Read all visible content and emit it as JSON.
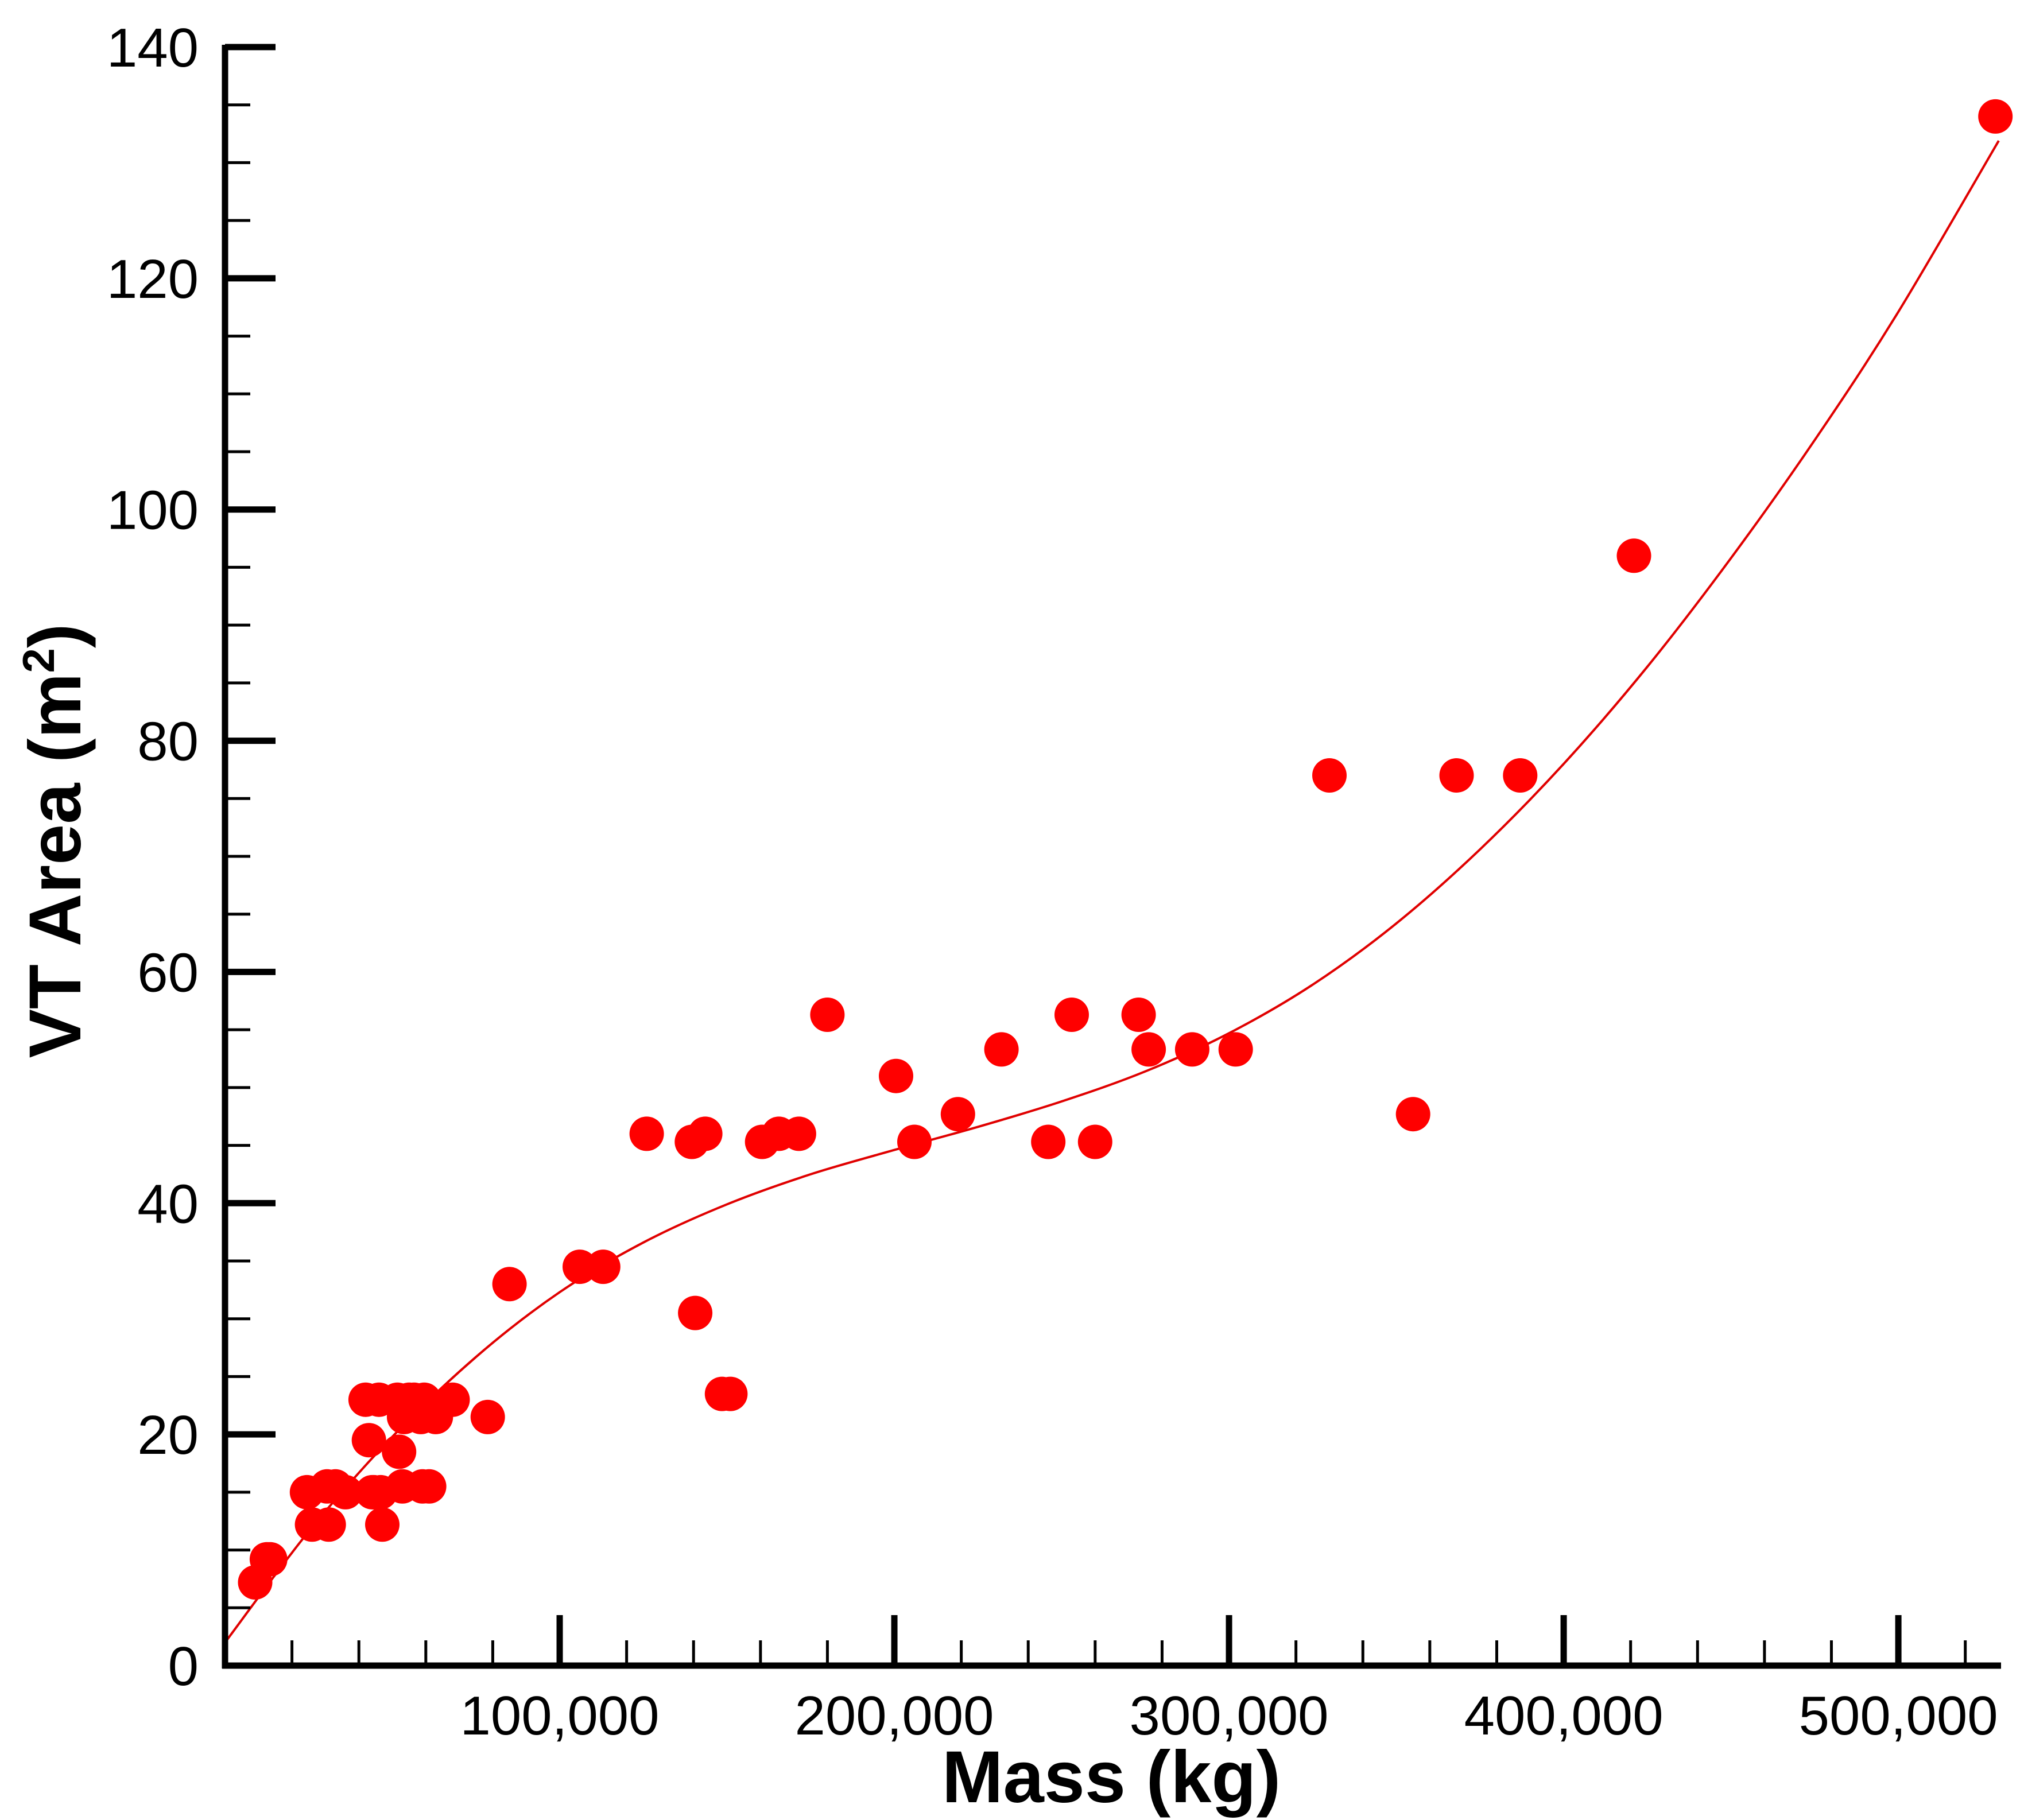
{
  "chart_data": {
    "type": "scatter",
    "title": "",
    "xlabel": "Mass (kg)",
    "ylabel": {
      "main": "VT Area (m",
      "sup": "2",
      "close": ")"
    },
    "xlim": [
      0,
      530000
    ],
    "ylim": [
      0,
      140
    ],
    "x_ticks": [
      100000,
      200000,
      300000,
      400000,
      500000
    ],
    "x_tick_labels": [
      "100,000",
      "200,000",
      "300,000",
      "400,000",
      "500,000"
    ],
    "x_minor_step": 20000,
    "y_ticks": [
      0,
      20,
      40,
      60,
      80,
      100,
      120,
      140
    ],
    "y_tick_labels": [
      "0",
      "20",
      "40",
      "60",
      "80",
      "100",
      "120",
      "140"
    ],
    "y_minor_step": 5,
    "grid": false,
    "colors": {
      "points": "#ff0000",
      "fit": "#e00000",
      "axes": "#000000"
    },
    "series": [
      {
        "name": "data",
        "x": [
          9000,
          12500,
          13500,
          24500,
          26000,
          30500,
          31000,
          33000,
          36000,
          42000,
          43000,
          44000,
          44500,
          46000,
          46500,
          47000,
          51500,
          52000,
          53000,
          53500,
          55000,
          56500,
          58500,
          59000,
          59500,
          61000,
          63000,
          68000,
          78500,
          85000,
          106000,
          113000,
          126000,
          139500,
          140500,
          143500,
          148500,
          151000,
          160500,
          165500,
          171500,
          180000,
          200500,
          206000,
          219000,
          232000,
          246000,
          253000,
          260000,
          273000,
          276000,
          289000,
          302000,
          330000,
          355000,
          368000,
          387000,
          421000,
          529000
        ],
        "y": [
          7.2,
          9.2,
          9.2,
          15.0,
          12.2,
          15.5,
          12.2,
          15.5,
          15.0,
          23.0,
          19.5,
          15.0,
          15.0,
          23.0,
          15.0,
          12.2,
          23.0,
          18.5,
          15.5,
          21.5,
          23.0,
          23.0,
          21.5,
          15.5,
          23.0,
          15.5,
          21.5,
          23.0,
          21.5,
          33.0,
          34.5,
          34.5,
          46.0,
          45.3,
          30.5,
          46.0,
          23.5,
          23.5,
          45.3,
          46.0,
          46.0,
          56.3,
          51.0,
          45.3,
          47.7,
          53.3,
          45.3,
          56.3,
          45.3,
          56.3,
          53.3,
          53.3,
          53.3,
          77.0,
          47.7,
          77.0,
          77.0,
          96.0,
          134.0
        ]
      },
      {
        "name": "fit",
        "type": "line",
        "x": [
          0,
          25000,
          50000,
          75000,
          100000,
          125000,
          150000,
          175000,
          200000,
          225000,
          250000,
          275000,
          300000,
          325000,
          350000,
          375000,
          400000,
          425000,
          450000,
          475000,
          500000,
          530000
        ],
        "y": [
          2.0,
          11.6,
          19.8,
          26.7,
          32.3,
          36.6,
          39.9,
          42.5,
          44.6,
          46.6,
          48.8,
          51.4,
          54.7,
          58.9,
          64.2,
          70.6,
          78.0,
          86.4,
          95.8,
          106.0,
          117.1,
          131.9
        ]
      }
    ]
  }
}
